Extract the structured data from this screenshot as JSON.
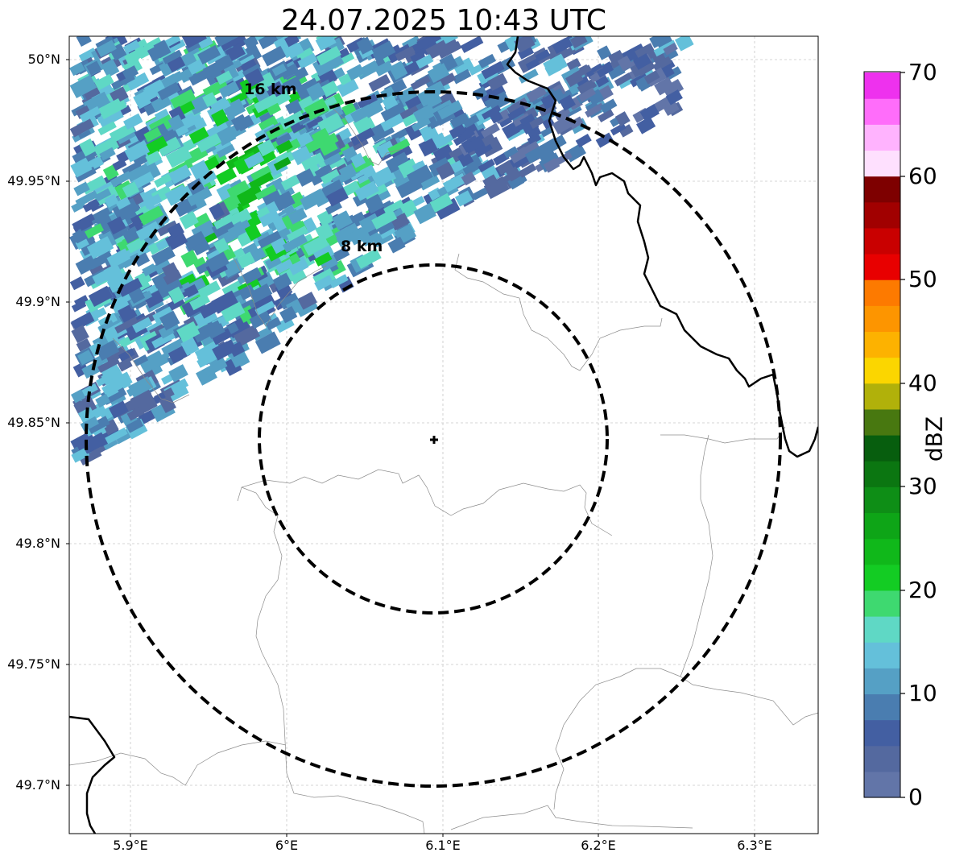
{
  "title": "24.07.2025 10:43 UTC",
  "lat_labels": [
    "50°N",
    "49.95°N",
    "49.9°N",
    "49.85°N",
    "49.8°N",
    "49.75°N",
    "49.7°N"
  ],
  "lon_labels": [
    "5.9°E",
    "6°E",
    "6.1°E",
    "6.2°E",
    "6.3°E"
  ],
  "rings": [
    {
      "label": "8 km",
      "radius_km": 8
    },
    {
      "label": "16 km",
      "radius_km": 16
    }
  ],
  "colorbar": {
    "label": "dBZ",
    "ticks": [
      "0",
      "10",
      "20",
      "30",
      "40",
      "50",
      "60",
      "70"
    ],
    "range": [
      0,
      70
    ],
    "step": 2.5,
    "colors": [
      "#6275a8",
      "#54699f",
      "#435fa2",
      "#4a7db0",
      "#55a0c5",
      "#64c0da",
      "#5fd8c5",
      "#3ed970",
      "#13cc23",
      "#10b81a",
      "#0ea517",
      "#0e8e16",
      "#0b7611",
      "#075e0e",
      "#487810",
      "#b1b10a",
      "#fbd600",
      "#fdb200",
      "#fd9500",
      "#fd7a00",
      "#e80000",
      "#c90000",
      "#a10000",
      "#7e0000",
      "#fee0fe",
      "#ffb3fe",
      "#ff6dfa",
      "#ee31ee"
    ]
  },
  "colors": {
    "rings": "#000000",
    "borders": "#000000",
    "admin_lines": "#8c8c8c",
    "gridlines": "#c8c8c8"
  },
  "icons": {
    "radar_site": "plus-marker"
  }
}
